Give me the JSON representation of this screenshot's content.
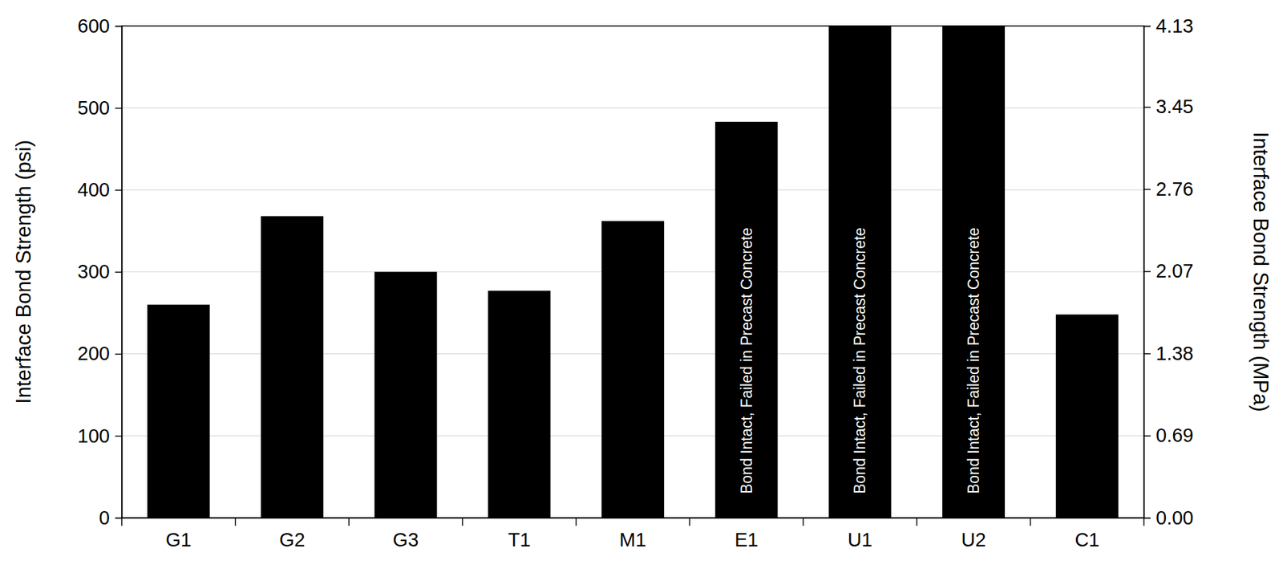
{
  "chart_data": {
    "type": "bar",
    "categories": [
      "G1",
      "G2",
      "G3",
      "T1",
      "M1",
      "E1",
      "U1",
      "U2",
      "C1"
    ],
    "values": [
      260,
      368,
      300,
      277,
      362,
      483,
      600,
      600,
      248
    ],
    "color": "#000000",
    "y_label": "Interface Bond Strength (psi)",
    "y2_label": "Interface Bond Strength (MPa)",
    "ylim": [
      0,
      600
    ],
    "yticks": [
      0,
      100,
      200,
      300,
      400,
      500,
      600
    ],
    "y2lim": [
      0,
      4.13
    ],
    "y2ticks": [
      {
        "value": 0,
        "label": "0.00"
      },
      0.69,
      1.38,
      2.07,
      2.76,
      3.45,
      4.13
    ],
    "grid": true,
    "annotations": [
      {
        "category": "E1",
        "text": "Bond Intact, Failed in Precast Concrete"
      },
      {
        "category": "U1",
        "text": "Bond Intact, Failed in Precast Concrete"
      },
      {
        "category": "U2",
        "text": "Bond Intact, Failed in Precast Concrete"
      }
    ]
  }
}
